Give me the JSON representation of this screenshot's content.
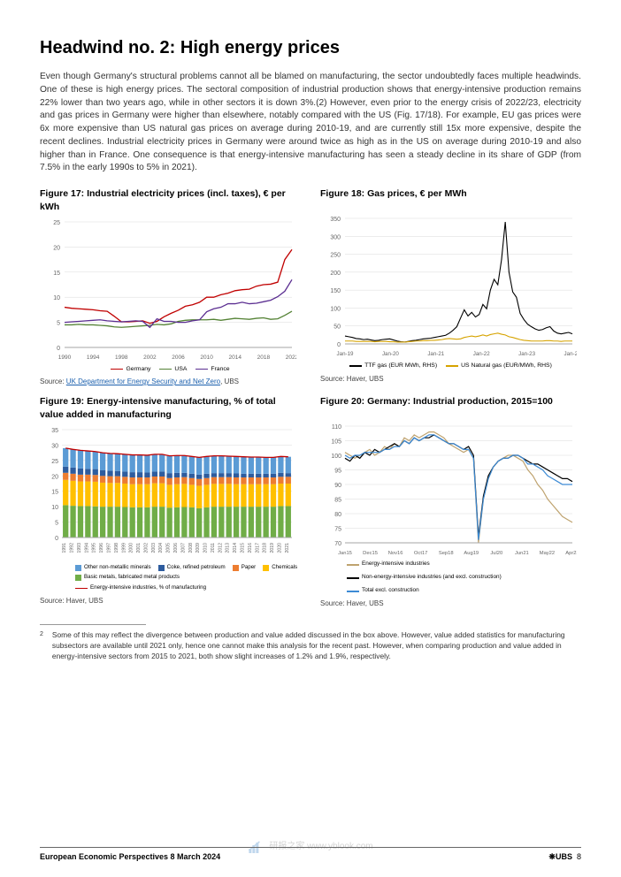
{
  "heading": "Headwind no. 2: High energy prices",
  "intro": "Even though Germany's structural problems cannot all be blamed on manufacturing, the sector undoubtedly faces multiple headwinds. One of these is high energy prices. The sectoral composition of industrial production shows that energy-intensive production remains 22% lower than two years ago, while in other sectors it is down 3%.(2) However, even prior to the energy crisis of 2022/23, electricity and gas prices in Germany were higher than elsewhere, notably compared with the US (Fig. 17/18). For example, EU gas prices were 6x more expensive than US natural gas prices on average during 2010-19, and are currently still 15x more expensive, despite the recent declines. Industrial electricity prices in Germany were around twice as high as in the US on average during 2010-19 and also higher than in France. One consequence is that energy-intensive manufacturing has seen a steady decline in its share of GDP (from 7.5% in the early 1990s to 5% in 2021).",
  "fig17": {
    "title": "Figure 17: Industrial electricity prices (incl. taxes), € per kWh",
    "type": "line",
    "yticks": [
      0,
      5,
      10,
      15,
      20,
      25
    ],
    "xticks": [
      "1990",
      "1994",
      "1998",
      "2002",
      "2006",
      "2010",
      "2014",
      "2018",
      "2022"
    ],
    "series": [
      {
        "name": "Germany",
        "color": "#c00000",
        "data": [
          8,
          7.8,
          7.7,
          7.6,
          7.5,
          7.3,
          7.2,
          6.2,
          5.1,
          5.1,
          5.2,
          5.3,
          4.8,
          5.2,
          6.1,
          6.8,
          7.4,
          8.2,
          8.5,
          9,
          10,
          10,
          10.5,
          10.8,
          11.3,
          11.5,
          11.6,
          12.2,
          12.5,
          12.6,
          13,
          17.5,
          19.5
        ]
      },
      {
        "name": "USA",
        "color": "#548235",
        "data": [
          4.5,
          4.5,
          4.6,
          4.5,
          4.5,
          4.4,
          4.3,
          4.1,
          4,
          4.1,
          4.2,
          4.3,
          4.4,
          4.6,
          4.5,
          4.7,
          5.2,
          5.4,
          5.5,
          5.5,
          5.5,
          5.6,
          5.4,
          5.6,
          5.8,
          5.7,
          5.6,
          5.8,
          5.9,
          5.6,
          5.7,
          6.4,
          7.2
        ]
      },
      {
        "name": "France",
        "color": "#5b2e91",
        "data": [
          5,
          5.1,
          5.2,
          5.3,
          5.4,
          5.5,
          5.3,
          5.2,
          5.1,
          5.2,
          5.3,
          5.2,
          4,
          5.7,
          5.2,
          5.2,
          5,
          5,
          5.3,
          5.5,
          7.1,
          7.7,
          8,
          8.7,
          8.7,
          9,
          8.7,
          8.8,
          9.1,
          9.4,
          10.1,
          11.2,
          13.5
        ]
      }
    ],
    "source_prefix": "Source: ",
    "source_link": "UK Department for Energy Security and Net Zero",
    "source_suffix": ", UBS",
    "grid_color": "#d9d9d9",
    "axis_color": "#a6a6a6"
  },
  "fig18": {
    "title": "Figure 18: Gas prices, € per MWh",
    "type": "line",
    "yticks": [
      0,
      50,
      100,
      150,
      200,
      250,
      300,
      350
    ],
    "xticks": [
      "Jan-19",
      "Jan-20",
      "Jan-21",
      "Jan-22",
      "Jan-23",
      "Jan-24"
    ],
    "series": [
      {
        "name": "TTF gas (EUR MWh, RHS)",
        "color": "#000000",
        "peak": 345
      },
      {
        "name": "US Natural gas (EUR/MWh, RHS)",
        "color": "#d6a300"
      }
    ],
    "ttf": [
      22,
      20,
      18,
      15,
      14,
      12,
      13,
      11,
      9,
      10,
      12,
      13,
      14,
      11,
      8,
      6,
      5,
      7,
      9,
      10,
      12,
      14,
      15,
      16,
      18,
      20,
      22,
      24,
      30,
      38,
      48,
      72,
      95,
      78,
      88,
      75,
      82,
      110,
      98,
      150,
      180,
      165,
      235,
      340,
      200,
      145,
      130,
      85,
      68,
      55,
      48,
      42,
      38,
      40,
      45,
      48,
      36,
      30,
      28,
      30,
      32,
      28
    ],
    "usgas": [
      8,
      8,
      8,
      7,
      7,
      7,
      7,
      7,
      6,
      7,
      7,
      7,
      6,
      6,
      5,
      5,
      5,
      6,
      7,
      8,
      8,
      9,
      9,
      10,
      10,
      11,
      12,
      14,
      15,
      14,
      13,
      14,
      18,
      20,
      22,
      20,
      22,
      25,
      22,
      26,
      28,
      30,
      27,
      25,
      20,
      18,
      15,
      12,
      10,
      9,
      8,
      8,
      8,
      8,
      9,
      9,
      8,
      8,
      7,
      8,
      8,
      8
    ],
    "source": "Source: Haver, UBS",
    "grid_color": "#d9d9d9",
    "axis_color": "#a6a6a6"
  },
  "fig19": {
    "title": "Figure 19: Energy-intensive manufacturing, % of total value added in manufacturing",
    "type": "stacked-bar",
    "yticks": [
      0,
      5,
      10,
      15,
      20,
      25,
      30,
      35
    ],
    "years": [
      "1991",
      "1992",
      "1993",
      "1994",
      "1995",
      "1996",
      "1997",
      "1998",
      "1999",
      "2000",
      "2001",
      "2002",
      "2003",
      "2004",
      "2005",
      "2006",
      "2007",
      "2008",
      "2009",
      "2010",
      "2011",
      "2012",
      "2013",
      "2014",
      "2015",
      "2016",
      "2017",
      "2018",
      "2019",
      "2020",
      "2021"
    ],
    "categories": [
      {
        "name": "Other non-metallic minerals",
        "color": "#5b9bd5"
      },
      {
        "name": "Coke, refined petroleum",
        "color": "#2e5c9e"
      },
      {
        "name": "Paper",
        "color": "#ed7d31"
      },
      {
        "name": "Chemicals",
        "color": "#ffc000"
      },
      {
        "name": "Basic metals, fabricated metal products",
        "color": "#70ad47"
      }
    ],
    "line": {
      "name": "Energy-intensive industries, % of manufacturing",
      "color": "#c00000"
    },
    "totals": [
      29,
      28.6,
      28.3,
      28.1,
      27.9,
      27.5,
      27.3,
      27.2,
      27,
      26.8,
      26.8,
      26.7,
      27,
      27,
      26.5,
      26.6,
      26.6,
      26.3,
      26,
      26.3,
      26.5,
      26.5,
      26.4,
      26.3,
      26.2,
      26.1,
      26.1,
      26,
      26,
      26.3,
      26.2
    ],
    "stack": {
      "green": [
        10.5,
        10.3,
        10.2,
        10.2,
        10.1,
        10,
        10,
        10,
        9.9,
        9.8,
        9.8,
        9.8,
        10,
        10,
        9.7,
        9.8,
        9.9,
        9.8,
        9.5,
        9.8,
        10,
        10,
        10,
        10,
        10,
        10,
        10,
        10,
        10,
        10.2,
        10.2
      ],
      "yellow": [
        8.2,
        8.1,
        8,
        8,
        8,
        7.8,
        7.7,
        7.7,
        7.6,
        7.5,
        7.5,
        7.5,
        7.6,
        7.6,
        7.4,
        7.5,
        7.5,
        7.3,
        7.3,
        7.3,
        7.4,
        7.4,
        7.4,
        7.3,
        7.3,
        7.3,
        7.3,
        7.3,
        7.3,
        7.3,
        7.3
      ],
      "orange": [
        2.3,
        2.3,
        2.2,
        2.2,
        2.2,
        2.2,
        2.2,
        2.2,
        2.2,
        2.2,
        2.2,
        2.2,
        2.2,
        2.2,
        2.2,
        2.2,
        2.2,
        2.2,
        2.2,
        2.2,
        2.2,
        2.2,
        2.2,
        2.2,
        2.2,
        2.2,
        2.2,
        2.2,
        2.2,
        2.2,
        2.2
      ],
      "dkblue": [
        2,
        2,
        2,
        1.9,
        1.9,
        1.8,
        1.8,
        1.7,
        1.7,
        1.7,
        1.7,
        1.6,
        1.6,
        1.6,
        1.6,
        1.5,
        1.4,
        1.4,
        1.4,
        1.4,
        1.3,
        1.3,
        1.3,
        1.3,
        1.2,
        1.2,
        1.2,
        1.2,
        1.2,
        1.3,
        1.2
      ],
      "ltblue": [
        6,
        5.9,
        5.9,
        5.8,
        5.7,
        5.7,
        5.6,
        5.6,
        5.6,
        5.6,
        5.6,
        5.6,
        5.6,
        5.6,
        5.6,
        5.6,
        5.6,
        5.6,
        5.6,
        5.6,
        5.6,
        5.6,
        5.5,
        5.5,
        5.5,
        5.4,
        5.4,
        5.3,
        5.3,
        5.3,
        5.3
      ]
    },
    "source": "Source: Haver, UBS",
    "grid_color": "#d9d9d9",
    "axis_color": "#a6a6a6"
  },
  "fig20": {
    "title": "Figure 20: Germany: Industrial production, 2015=100",
    "type": "line",
    "yticks": [
      70,
      75,
      80,
      85,
      90,
      95,
      100,
      105,
      110
    ],
    "xticks": [
      "Jan15",
      "Dec15",
      "Nov16",
      "Oct17",
      "Sep18",
      "Aug19",
      "Jul20",
      "Jun21",
      "May22",
      "Apr23"
    ],
    "series": [
      {
        "name": "Energy-intensive industries",
        "color": "#bfa36f"
      },
      {
        "name": "Non-energy-intensive industries (and excl. construction)",
        "color": "#000000"
      },
      {
        "name": "Total excl. construction",
        "color": "#3d8bd5"
      }
    ],
    "energy": [
      101,
      100,
      99,
      100,
      101,
      102,
      100,
      101,
      103,
      102,
      104,
      103,
      106,
      105,
      107,
      106,
      107,
      108,
      108,
      107,
      106,
      104,
      103,
      102,
      101,
      102,
      99,
      70,
      85,
      92,
      96,
      98,
      99,
      100,
      100,
      99,
      98,
      95,
      93,
      90,
      88,
      85,
      83,
      81,
      79,
      78,
      77
    ],
    "non": [
      99,
      98,
      100,
      99,
      101,
      100,
      102,
      101,
      102,
      103,
      104,
      103,
      105,
      104,
      106,
      105,
      106,
      106,
      107,
      106,
      105,
      104,
      104,
      103,
      102,
      103,
      100,
      72,
      86,
      93,
      96,
      98,
      99,
      99,
      100,
      100,
      99,
      98,
      97,
      97,
      96,
      95,
      94,
      93,
      92,
      92,
      91
    ],
    "total": [
      100,
      99,
      100,
      100,
      101,
      101,
      101,
      101,
      102,
      102,
      103,
      103,
      105,
      104,
      106,
      105,
      106,
      107,
      107,
      106,
      105,
      104,
      104,
      103,
      102,
      102,
      99,
      71,
      85,
      92,
      96,
      98,
      99,
      99,
      100,
      100,
      99,
      97,
      97,
      96,
      95,
      93,
      92,
      91,
      90,
      90,
      90
    ],
    "source": "Source: Haver, UBS",
    "grid_color": "#d9d9d9",
    "axis_color": "#a6a6a6"
  },
  "footnote_num": "2",
  "footnote": "Some of this may reflect the divergence between production and value added discussed in the box above. However, value added statistics for manufacturing subsectors are available until 2021 only, hence one cannot make this analysis for the recent past. However, when comparing production and value added in energy-intensive sectors from 2015 to 2021, both show slight increases of 1.2% and 1.9%, respectively.",
  "footer_left": "European Economic Perspectives  8 March 2024",
  "footer_brand": "UBS",
  "page_num": "8",
  "watermark": "研报之家  www.yblook.com"
}
